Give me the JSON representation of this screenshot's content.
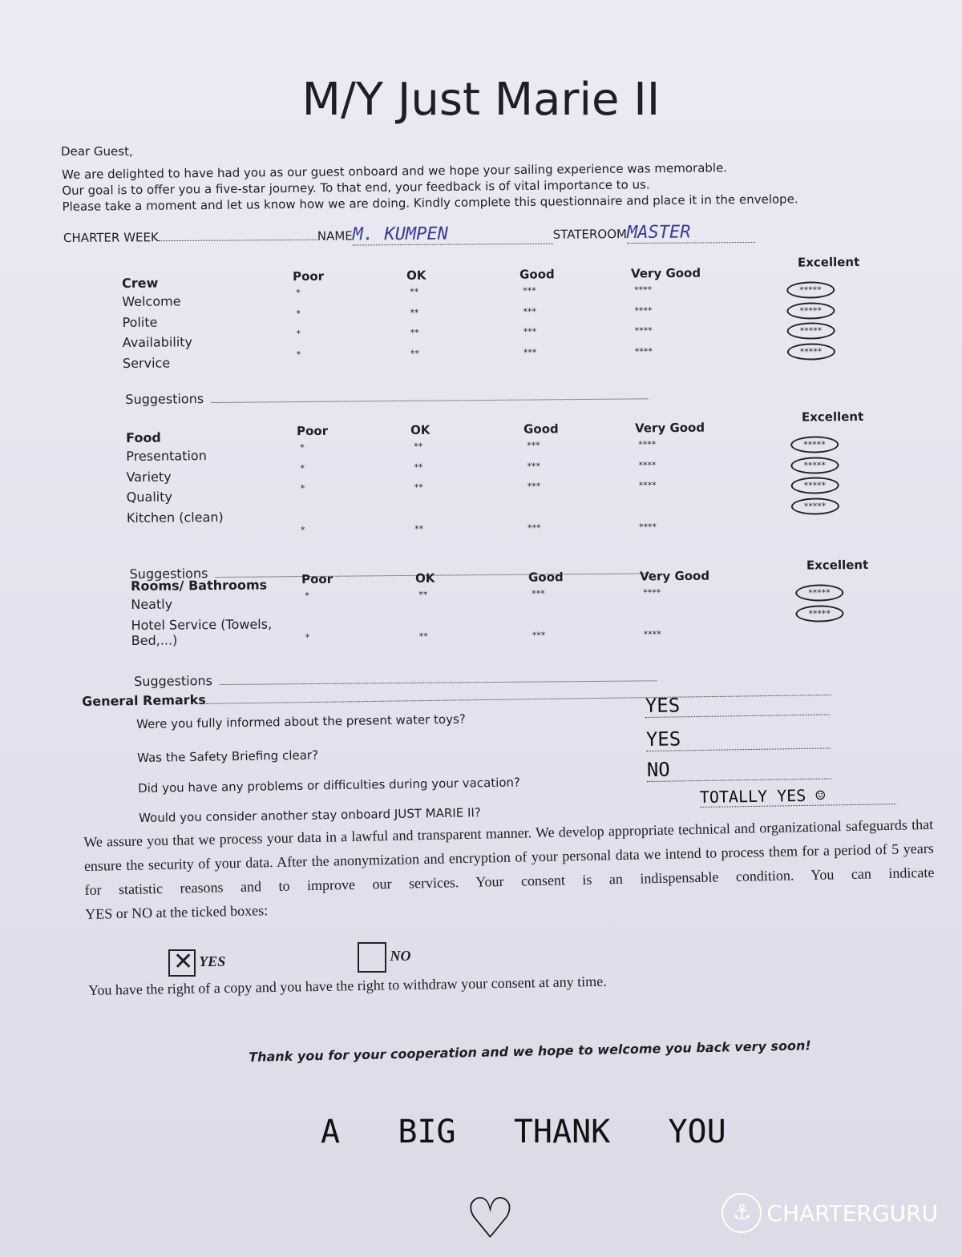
{
  "title": "M/Y Just Marie II",
  "greeting": "Dear Guest,",
  "intro": [
    "We are delighted to have had you as our guest onboard and we hope your sailing experience was memorable.",
    "Our goal is to offer you a five-star journey. To that end, your feedback is of vital importance to us.",
    "Please take a moment and let us know how we are doing. Kindly complete this questionnaire and place it in the envelope."
  ],
  "fields": {
    "charter_week_label": "CHARTER WEEK",
    "charter_week_value": "",
    "name_label": "NAME",
    "name_value": "M. KUMPEN",
    "stateroom_label": "STATEROOM",
    "stateroom_value": "MASTER"
  },
  "rating_columns": [
    {
      "label": "Poor",
      "stars": "*"
    },
    {
      "label": "OK",
      "stars": "**"
    },
    {
      "label": "Good",
      "stars": "***"
    },
    {
      "label": "Very Good",
      "stars": "****"
    },
    {
      "label": "Excellent",
      "stars": "*****"
    }
  ],
  "sections": [
    {
      "title": "Crew",
      "items": [
        {
          "label": "Welcome",
          "selected": "Excellent"
        },
        {
          "label": "Polite",
          "selected": "Excellent"
        },
        {
          "label": "Availability",
          "selected": "Excellent"
        },
        {
          "label": "Service",
          "selected": "Excellent"
        }
      ],
      "suggestions_label": "Suggestions",
      "suggestions_value": ""
    },
    {
      "title": "Food",
      "items": [
        {
          "label": "Presentation",
          "selected": "Excellent"
        },
        {
          "label": "Variety",
          "selected": "Excellent"
        },
        {
          "label": "Quality",
          "selected": "Excellent"
        },
        {
          "label": "Kitchen (clean)",
          "selected": "Excellent"
        }
      ],
      "suggestions_label": "Suggestions",
      "suggestions_value": ""
    },
    {
      "title": "Rooms/ Bathrooms",
      "items": [
        {
          "label": "Neatly",
          "selected": "Excellent"
        },
        {
          "label": "Hotel Service (Towels, Bed,...)",
          "selected": "Excellent"
        }
      ],
      "suggestions_label": "Suggestions",
      "suggestions_value": ""
    }
  ],
  "general_remarks_label": "General Remarks",
  "questions": [
    {
      "q": "Were you fully informed about the present water toys?",
      "a": "YES"
    },
    {
      "q": "Was the Safety Briefing clear?",
      "a": "YES"
    },
    {
      "q": "Did you have any problems or difficulties during your vacation?",
      "a": "NO"
    },
    {
      "q": "Would you consider another stay onboard JUST MARIE II?",
      "a": "TOTALLY YES ☺"
    }
  ],
  "privacy_text": "We assure you that we process your data in a lawful and transparent manner. We develop appropriate technical and organizational safeguards that ensure the security of your data. After the anonymization and encryption of your personal data we intend to process them for a period of 5 years for statistic reasons and to improve our services. Your consent is an indispensable condition. You can indicate",
  "privacy_tick_line": "YES or NO at the ticked boxes:",
  "consent": {
    "yes_label": "YES",
    "no_label": "NO",
    "selected": "YES"
  },
  "rights_text": "You have the right of a copy and you have the right to withdraw your consent at any time.",
  "closing": "Thank you for your cooperation and we hope to welcome you back very soon!",
  "handwritten_note": "A   BIG   THANK   YOU",
  "watermark": "CHARTERGURU"
}
